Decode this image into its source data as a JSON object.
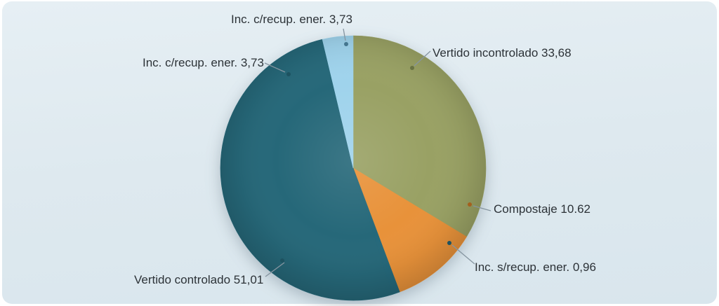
{
  "page": {
    "background": "#ffffff",
    "card_background": "#dde9ef"
  },
  "chart_data": {
    "type": "pie",
    "title": "",
    "direction": "clockwise",
    "start_angle_deg": 0,
    "legend_position": "none",
    "unit": "%",
    "slices": [
      {
        "label": "Vertido incontrolado",
        "value": 33.68,
        "color": "#99a164"
      },
      {
        "label": "Compostaje",
        "value": 10.62,
        "color": "#e8923a"
      },
      {
        "label": "Inc. s/recup. ener.",
        "value": 0.96,
        "color": "#25687a"
      },
      {
        "label": "Vertido controlado",
        "value": 51.01,
        "color": "#266879"
      },
      {
        "label": "Inc. c/recup. ener.",
        "value": 3.73,
        "color": "#9fd3ec"
      }
    ],
    "callouts": [
      {
        "text": "Inc. c/recup. ener. 3,73"
      },
      {
        "text": "Inc. c/recup. ener. 3,73"
      },
      {
        "text": "Vertido incontrolado 33,68"
      },
      {
        "text": "Compostaje 10.62"
      },
      {
        "text": "Inc. s/recup. ener. 0,96"
      },
      {
        "text": "Vertido controlado 51,01"
      }
    ]
  }
}
